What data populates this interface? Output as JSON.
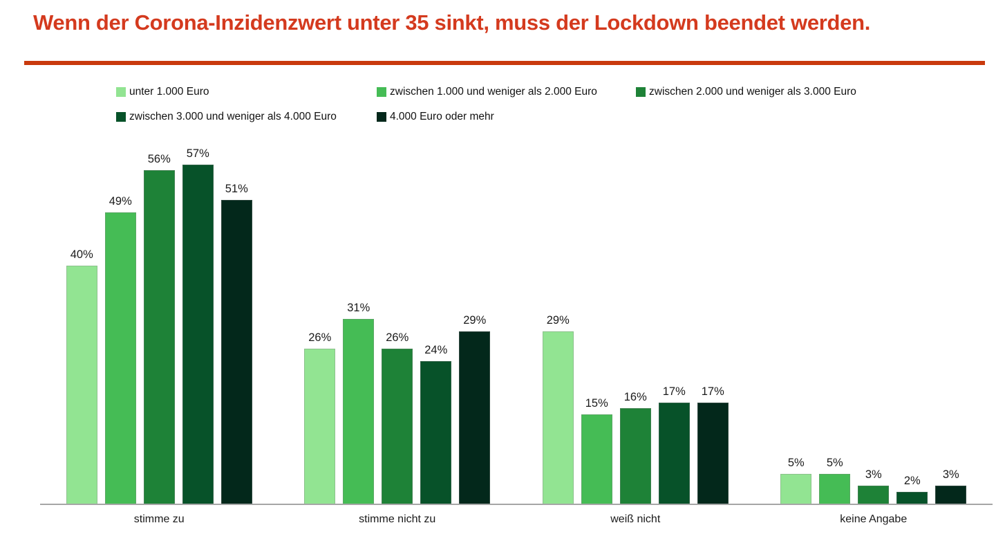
{
  "header": {
    "title": "Wenn der Corona-Inzidenzwert unter 35 sinkt, muss der Lockdown beendet werden.",
    "title_color": "#D43A1E",
    "divider_color": "#C93A0D"
  },
  "chart_data": {
    "type": "bar",
    "title": "Wenn der Corona-Inzidenzwert unter 35 sinkt, muss der Lockdown beendet werden.",
    "categories": [
      "stimme zu",
      "stimme nicht zu",
      "weiß nicht",
      "keine Angabe"
    ],
    "series": [
      {
        "name": "unter 1.000 Euro",
        "color": "#92E492",
        "values": [
          40,
          26,
          29,
          5
        ]
      },
      {
        "name": "zwischen 1.000 und weniger als 2.000 Euro",
        "color": "#45BC55",
        "values": [
          49,
          31,
          15,
          5
        ]
      },
      {
        "name": "zwischen 2.000 und weniger als 3.000 Euro",
        "color": "#1E8237",
        "values": [
          56,
          26,
          16,
          3
        ]
      },
      {
        "name": "zwischen 3.000 und weniger als 4.000 Euro",
        "color": "#075229",
        "values": [
          57,
          24,
          17,
          2
        ]
      },
      {
        "name": "4.000 Euro oder mehr",
        "color": "#03281B",
        "values": [
          51,
          29,
          17,
          3
        ]
      }
    ],
    "value_suffix": "%",
    "ylim": [
      0,
      60
    ],
    "grid": false,
    "legend_position": "top",
    "legend_rows": [
      [
        0,
        1,
        2
      ],
      [
        3,
        4
      ]
    ],
    "axis_color": "#A6A6A6",
    "label_color": "#1A1A1A"
  }
}
